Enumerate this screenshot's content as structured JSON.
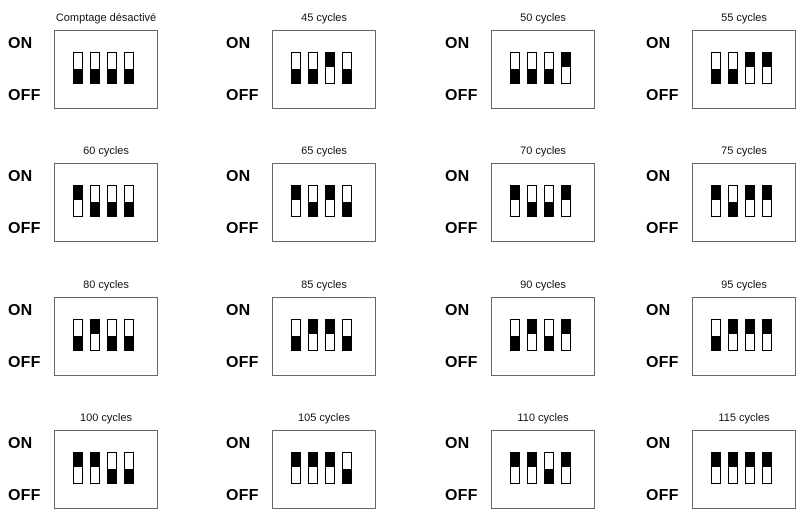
{
  "labels": {
    "on": "ON",
    "off": "OFF"
  },
  "colors": {
    "switch_fill": "#000000",
    "box_border": "#666666",
    "background": "#ffffff"
  },
  "configs": [
    {
      "caption": "Comptage désactivé",
      "switches": [
        "off",
        "off",
        "off",
        "off"
      ]
    },
    {
      "caption": "45 cycles",
      "switches": [
        "off",
        "off",
        "on",
        "off"
      ]
    },
    {
      "caption": "50 cycles",
      "switches": [
        "off",
        "off",
        "off",
        "on"
      ]
    },
    {
      "caption": "55 cycles",
      "switches": [
        "off",
        "off",
        "on",
        "on"
      ]
    },
    {
      "caption": "60 cycles",
      "switches": [
        "on",
        "off",
        "off",
        "off"
      ]
    },
    {
      "caption": "65 cycles",
      "switches": [
        "on",
        "off",
        "on",
        "off"
      ]
    },
    {
      "caption": "70 cycles",
      "switches": [
        "on",
        "off",
        "off",
        "on"
      ]
    },
    {
      "caption": "75 cycles",
      "switches": [
        "on",
        "off",
        "on",
        "on"
      ]
    },
    {
      "caption": "80 cycles",
      "switches": [
        "off",
        "on",
        "off",
        "off"
      ]
    },
    {
      "caption": "85 cycles",
      "switches": [
        "off",
        "on",
        "on",
        "off"
      ]
    },
    {
      "caption": "90 cycles",
      "switches": [
        "off",
        "on",
        "off",
        "on"
      ]
    },
    {
      "caption": "95 cycles",
      "switches": [
        "off",
        "on",
        "on",
        "on"
      ]
    },
    {
      "caption": "100 cycles",
      "switches": [
        "on",
        "on",
        "off",
        "off"
      ]
    },
    {
      "caption": "105 cycles",
      "switches": [
        "on",
        "on",
        "on",
        "off"
      ]
    },
    {
      "caption": "110 cycles",
      "switches": [
        "on",
        "on",
        "off",
        "on"
      ]
    },
    {
      "caption": "115 cycles",
      "switches": [
        "on",
        "on",
        "on",
        "on"
      ]
    }
  ]
}
